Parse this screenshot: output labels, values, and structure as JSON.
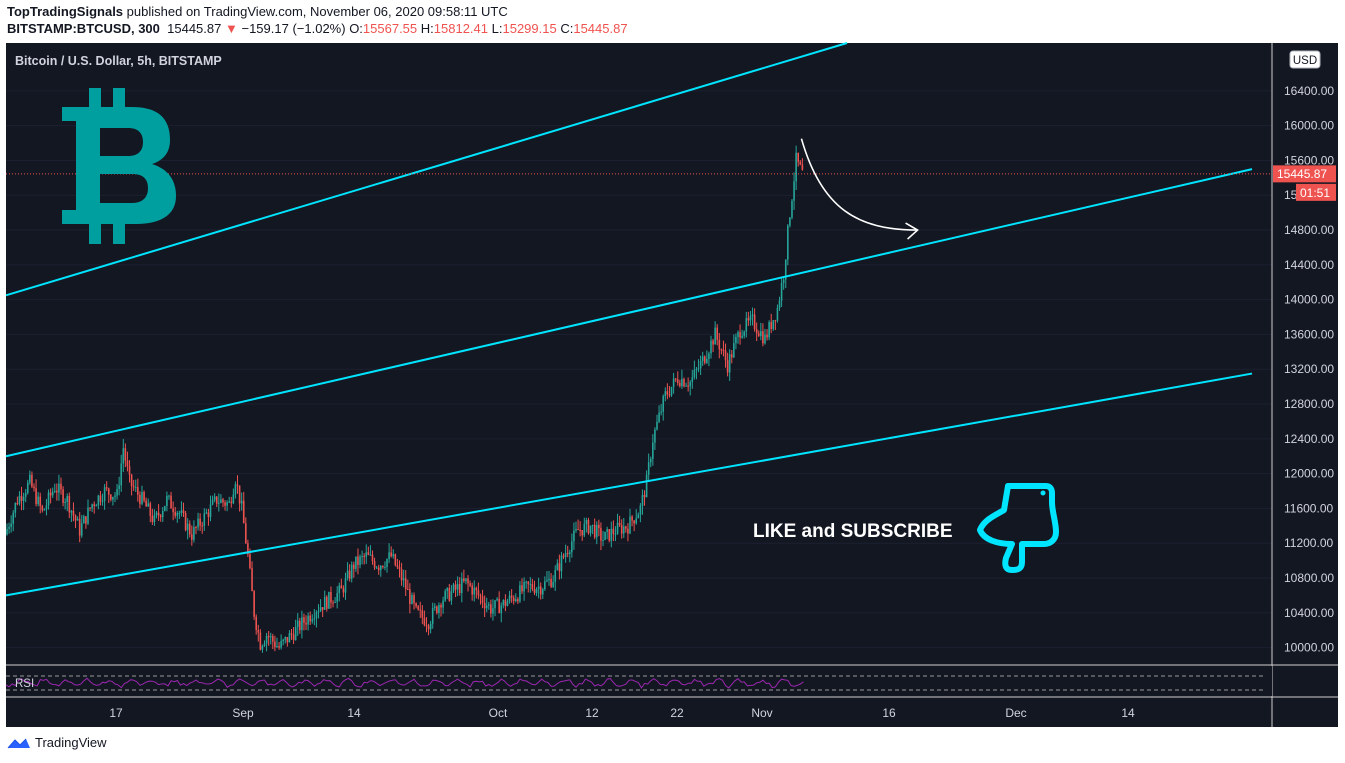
{
  "header": {
    "author": "TopTradingSignals",
    "published_text": "published on TradingView.com, November 06, 2020 09:58:11 UTC",
    "symbol": "BITSTAMP:BTCUSD, 300",
    "last": "15445.87",
    "down_arrow": "▼",
    "change": "−159.17 (−1.02%)",
    "o_label": "O:",
    "o_value": "15567.55",
    "h_label": "H:",
    "h_value": "15812.41",
    "l_label": "L:",
    "l_value": "15299.15",
    "c_label": "C:",
    "c_value": "15445.87"
  },
  "chart": {
    "legend": "Bitcoin / U.S. Dollar, 5h, BITSTAMP",
    "currency_button": "USD",
    "price_badge": "15445.87",
    "countdown_badge": "01:51",
    "annotation_text": "LIKE and SUBSCRIBE",
    "rsi_label": "RSI",
    "logo_icon": "bitcoin-logo-icon",
    "hand_icon": "pointing-hand-icon",
    "colors": {
      "background": "#131722",
      "channel": "#00e5ff",
      "bitcoin": "#009f9f",
      "up": "#26a69a",
      "down": "#ef5350",
      "rsi": "#9c27b0",
      "price_line": "#ef5350"
    }
  },
  "chart_data": {
    "type": "candlestick",
    "ylim": [
      9800,
      16950
    ],
    "y_ticks": [
      "16400.00",
      "16000.00",
      "15600.00",
      "15200.00",
      "14800.00",
      "14400.00",
      "14000.00",
      "13600.00",
      "13200.00",
      "12800.00",
      "12400.00",
      "12000.00",
      "11600.00",
      "11200.00",
      "10800.00",
      "10400.00",
      "10000.00"
    ],
    "x_ticks": [
      "17",
      "Sep",
      "14",
      "Oct",
      "12",
      "22",
      "Nov",
      "16",
      "Dec",
      "14"
    ],
    "last_price": 15445.87,
    "path": [
      [
        0,
        11300
      ],
      [
        2,
        11700
      ],
      [
        4,
        11900
      ],
      [
        6,
        11550
      ],
      [
        8,
        11850
      ],
      [
        10,
        11700
      ],
      [
        12,
        11350
      ],
      [
        14,
        11650
      ],
      [
        16,
        11800
      ],
      [
        18,
        11750
      ],
      [
        19,
        12300
      ],
      [
        20,
        11900
      ],
      [
        22,
        11700
      ],
      [
        24,
        11450
      ],
      [
        26,
        11700
      ],
      [
        28,
        11550
      ],
      [
        30,
        11300
      ],
      [
        32,
        11500
      ],
      [
        34,
        11700
      ],
      [
        36,
        11650
      ],
      [
        37,
        11950
      ],
      [
        38,
        11600
      ],
      [
        39,
        11050
      ],
      [
        40,
        10400
      ],
      [
        41,
        10050
      ],
      [
        42,
        10150
      ],
      [
        44,
        10000
      ],
      [
        46,
        10150
      ],
      [
        48,
        10300
      ],
      [
        50,
        10450
      ],
      [
        52,
        10550
      ],
      [
        54,
        10650
      ],
      [
        56,
        10950
      ],
      [
        58,
        11050
      ],
      [
        60,
        10950
      ],
      [
        62,
        11050
      ],
      [
        64,
        10750
      ],
      [
        66,
        10400
      ],
      [
        68,
        10300
      ],
      [
        70,
        10550
      ],
      [
        72,
        10650
      ],
      [
        74,
        10750
      ],
      [
        76,
        10600
      ],
      [
        78,
        10450
      ],
      [
        80,
        10500
      ],
      [
        82,
        10600
      ],
      [
        84,
        10700
      ],
      [
        86,
        10700
      ],
      [
        88,
        10800
      ],
      [
        90,
        11100
      ],
      [
        92,
        11350
      ],
      [
        94,
        11400
      ],
      [
        96,
        11250
      ],
      [
        98,
        11350
      ],
      [
        100,
        11400
      ],
      [
        102,
        11600
      ],
      [
        103,
        11900
      ],
      [
        104,
        12400
      ],
      [
        106,
        12900
      ],
      [
        108,
        13100
      ],
      [
        110,
        13050
      ],
      [
        112,
        13300
      ],
      [
        114,
        13600
      ],
      [
        116,
        13250
      ],
      [
        118,
        13650
      ],
      [
        120,
        13750
      ],
      [
        122,
        13550
      ],
      [
        124,
        13900
      ],
      [
        125,
        14300
      ],
      [
        126,
        15000
      ],
      [
        127,
        15600
      ],
      [
        128,
        15445
      ]
    ],
    "channel_lines": [
      {
        "name": "upper",
        "x": [
          0,
          135
        ],
        "y": [
          14050,
          16950
        ]
      },
      {
        "name": "middle",
        "x": [
          0,
          200
        ],
        "y": [
          12200,
          15500
        ]
      },
      {
        "name": "lower",
        "x": [
          0,
          200
        ],
        "y": [
          10600,
          13150
        ]
      }
    ],
    "projection_arrow": {
      "from": [
        128,
        15850
      ],
      "to": [
        146,
        14800
      ]
    }
  }
}
